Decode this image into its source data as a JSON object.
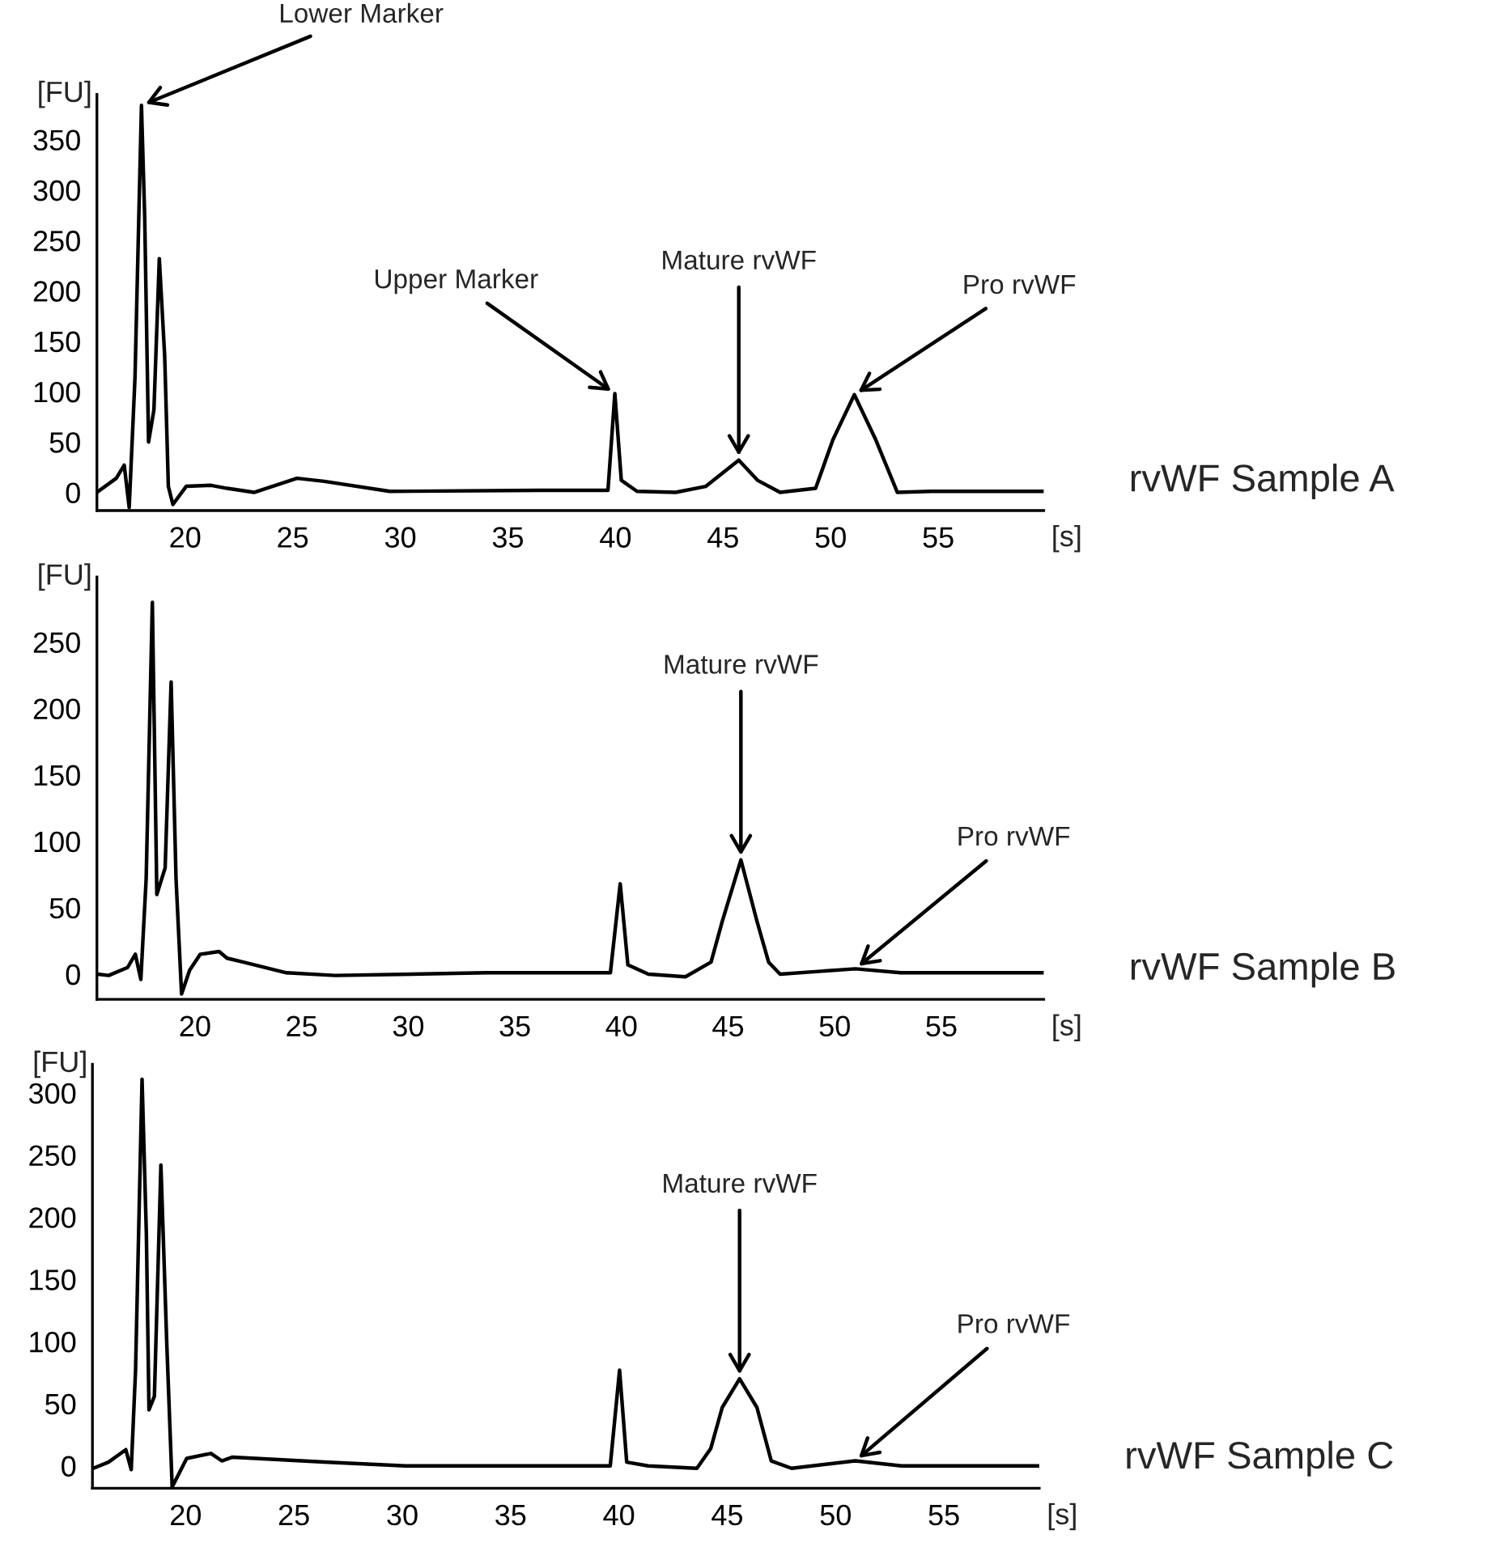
{
  "chart_data": [
    {
      "type": "line",
      "xlabel": "[s]",
      "ylabel": "[FU]",
      "xlim": [
        15.9,
        59.9
      ],
      "ylim": [
        -18,
        395
      ],
      "xticks": [
        20,
        25,
        30,
        35,
        40,
        45,
        50,
        55
      ],
      "yticks": [
        0,
        50,
        100,
        150,
        200,
        250,
        300,
        350
      ],
      "grid": false,
      "legend": false,
      "series": [
        {
          "color": "#000000",
          "x": [
            15.9,
            16.8,
            17.17,
            17.4,
            17.67,
            17.97,
            18.12,
            18.3,
            18.55,
            18.8,
            19.05,
            19.22,
            19.43,
            20.05,
            21.2,
            21.95,
            23.2,
            25.2,
            26.46,
            29.5,
            36.5,
            39.65,
            39.97,
            40.27,
            41.0,
            42.8,
            44.2,
            45.73,
            46.6,
            47.65,
            49.3,
            50.1,
            51.1,
            52.1,
            53.1,
            54.7,
            59.9
          ],
          "values": [
            0,
            14,
            27,
            -15,
            114,
            384,
            274,
            50,
            82,
            232,
            135,
            6,
            -12,
            6,
            7,
            4,
            0,
            14,
            11,
            1,
            2,
            2,
            98,
            12,
            1,
            0,
            6,
            32,
            12,
            0,
            4,
            52,
            97,
            52,
            0,
            1,
            1
          ]
        }
      ],
      "annotations": [
        {
          "text": "Lower Marker",
          "x": 17.97,
          "y": 384
        },
        {
          "text": "Upper Marker",
          "x": 39.97,
          "y": 98
        },
        {
          "text": "Mature rvWF",
          "x": 45.73,
          "y": 32
        },
        {
          "text": "Pro rvWF",
          "x": 51.1,
          "y": 97
        },
        "rvWF Sample A"
      ]
    },
    {
      "type": "line",
      "xlabel": "[s]",
      "ylabel": "[FU]",
      "xlim": [
        15.4,
        59.8
      ],
      "ylim": [
        -19,
        299
      ],
      "xticks": [
        20,
        25,
        30,
        35,
        40,
        45,
        50,
        55
      ],
      "yticks": [
        0,
        50,
        100,
        150,
        200,
        250
      ],
      "grid": false,
      "legend": false,
      "series": [
        {
          "color": "#000000",
          "x": [
            15.44,
            15.95,
            16.84,
            17.2,
            17.46,
            17.71,
            18.0,
            18.21,
            18.6,
            18.88,
            19.11,
            19.37,
            19.75,
            20.25,
            21.13,
            21.5,
            22.27,
            24.29,
            26.57,
            33.66,
            39.48,
            39.94,
            40.3,
            41.26,
            43.0,
            44.2,
            44.73,
            45.6,
            46.35,
            46.9,
            47.44,
            50.97,
            53.1,
            59.8
          ],
          "values": [
            0,
            -1,
            5,
            15,
            -4,
            72,
            280,
            60,
            80,
            220,
            72,
            -15,
            3,
            15,
            17,
            12,
            9,
            1,
            -1,
            1,
            1,
            68,
            7,
            0,
            -2,
            9,
            40,
            86,
            40,
            9,
            0,
            4,
            1,
            1
          ]
        }
      ],
      "annotations": [
        {
          "text": "Mature rvWF",
          "x": 45.6,
          "y": 86
        },
        {
          "text": "Pro rvWF",
          "x": 50.97,
          "y": 4
        },
        "rvWF Sample B"
      ]
    },
    {
      "type": "line",
      "xlabel": "[s]",
      "ylabel": "[FU]",
      "xlim": [
        15.7,
        59.4
      ],
      "ylim": [
        -18,
        323
      ],
      "xticks": [
        20,
        25,
        30,
        35,
        40,
        45,
        50,
        55
      ],
      "yticks": [
        0,
        50,
        100,
        150,
        200,
        250,
        300
      ],
      "grid": false,
      "legend": false,
      "series": [
        {
          "color": "#000000",
          "x": [
            15.74,
            16.44,
            17.24,
            17.49,
            17.69,
            17.99,
            18.19,
            18.31,
            18.56,
            18.86,
            19.13,
            19.38,
            20.05,
            21.17,
            21.67,
            22.17,
            26.41,
            30.15,
            39.6,
            40.03,
            40.36,
            41.35,
            43.6,
            44.24,
            44.77,
            45.57,
            46.37,
            47.03,
            47.97,
            50.91,
            53.04,
            59.4
          ],
          "values": [
            -2,
            3,
            13,
            -3,
            77,
            311,
            186,
            45,
            56,
            242,
            99,
            -17,
            6,
            10,
            4,
            7,
            3,
            0,
            0,
            77,
            3,
            0,
            -2,
            14,
            47,
            70,
            47,
            4,
            -2,
            4,
            0,
            0
          ]
        }
      ],
      "annotations": [
        {
          "text": "Mature rvWF",
          "x": 45.57,
          "y": 70
        },
        {
          "text": "Pro rvWF",
          "x": 50.91,
          "y": 4
        },
        "rvWF Sample C"
      ]
    }
  ]
}
